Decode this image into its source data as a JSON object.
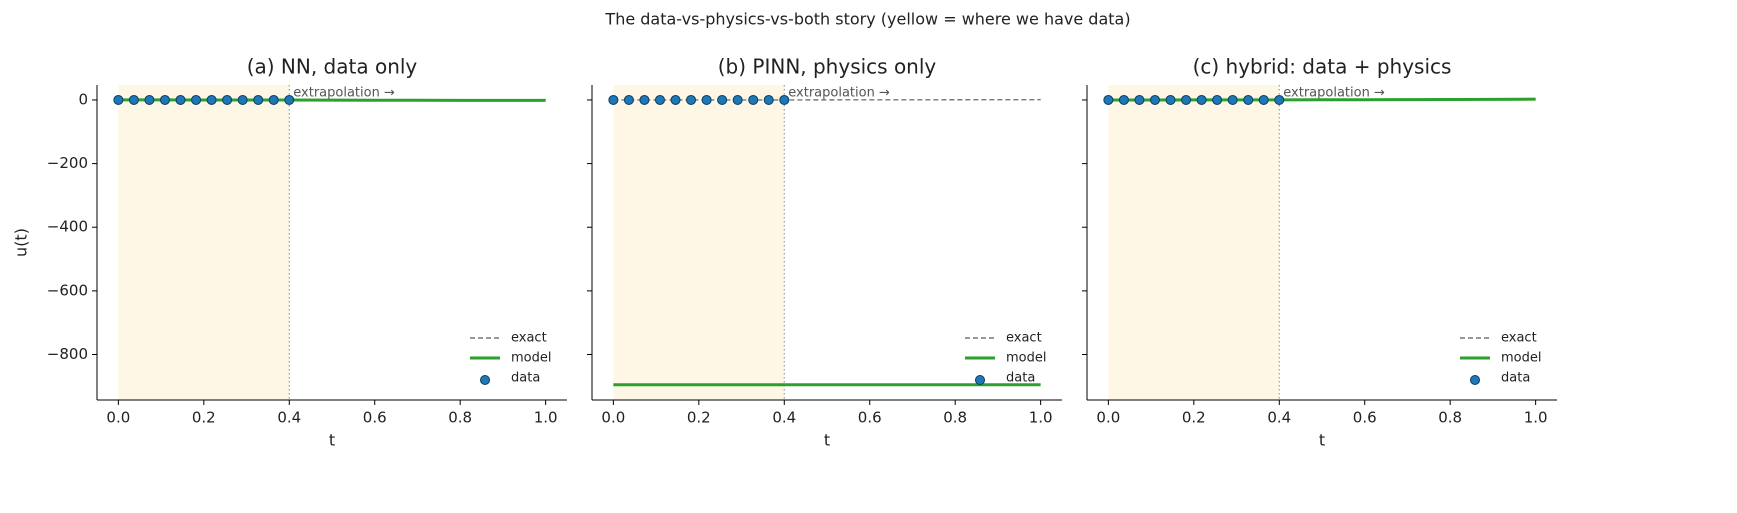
{
  "suptitle": "The data-vs-physics-vs-both story (yellow = where we have data)",
  "chart_data": [
    {
      "type": "line",
      "title": "(a) NN, data only",
      "xlabel": "t",
      "ylabel": "u(t)",
      "x": [
        0,
        0.1,
        0.2,
        0.3,
        0.4,
        0.5,
        0.6,
        0.7,
        0.8,
        0.9,
        1.0
      ],
      "series": [
        {
          "name": "exact",
          "style": "dashed",
          "color": "#777777",
          "values": [
            0,
            0.01,
            0.04,
            0.09,
            0.16,
            0.25,
            0.36,
            0.49,
            0.64,
            0.81,
            1
          ]
        },
        {
          "name": "model",
          "style": "solid",
          "color": "#2ca02c",
          "values": [
            0.2,
            0.1,
            0,
            0,
            -0.2,
            -0.5,
            -0.8,
            -1,
            -1.2,
            -1.4,
            -1.5
          ]
        },
        {
          "name": "data",
          "style": "markers",
          "color": "#1f77b4",
          "x": [
            0,
            0.0364,
            0.0727,
            0.1091,
            0.1455,
            0.1818,
            0.2182,
            0.2545,
            0.2909,
            0.3273,
            0.3636,
            0.4
          ],
          "values": [
            0,
            0,
            0,
            0,
            0,
            0,
            0,
            0,
            0,
            0,
            0,
            0
          ]
        }
      ],
      "shade": [
        0,
        0.4
      ],
      "vline": 0.4,
      "annotation": "extrapolation →",
      "legend": "lower right",
      "xlim": [
        -0.05,
        1.05
      ],
      "ylim": [
        -943,
        47
      ],
      "xticks": [
        {
          "value": 0,
          "label": "0.0"
        },
        0.2,
        0.4,
        0.6,
        0.8,
        {
          "value": 1,
          "label": "1.0"
        }
      ],
      "yticks": [
        0,
        {
          "value": -200,
          "label": "−200"
        },
        {
          "value": -400,
          "label": "−400"
        },
        {
          "value": -600,
          "label": "−600"
        },
        {
          "value": -800,
          "label": "−800"
        }
      ]
    },
    {
      "type": "line",
      "title": "(b) PINN, physics only",
      "xlabel": "t",
      "x": [
        0,
        0.1,
        0.2,
        0.3,
        0.4,
        0.5,
        0.6,
        0.7,
        0.8,
        0.9,
        1.0
      ],
      "series": [
        {
          "name": "exact",
          "style": "dashed",
          "color": "#777777",
          "values": [
            0,
            0.01,
            0.04,
            0.09,
            0.16,
            0.25,
            0.36,
            0.49,
            0.64,
            0.81,
            1
          ]
        },
        {
          "name": "model",
          "style": "solid",
          "color": "#2ca02c",
          "values": [
            -895,
            -895,
            -895,
            -895,
            -895,
            -895,
            -895,
            -895,
            -895,
            -895,
            -895
          ]
        },
        {
          "name": "data",
          "style": "markers",
          "color": "#1f77b4",
          "x": [
            0,
            0.0364,
            0.0727,
            0.1091,
            0.1455,
            0.1818,
            0.2182,
            0.2545,
            0.2909,
            0.3273,
            0.3636,
            0.4
          ],
          "values": [
            0,
            0,
            0,
            0,
            0,
            0,
            0,
            0,
            0,
            0,
            0,
            0
          ]
        }
      ],
      "shade": [
        0,
        0.4
      ],
      "vline": 0.4,
      "annotation": "extrapolation →",
      "legend": "lower right",
      "xlim": [
        -0.05,
        1.05
      ],
      "ylim": [
        -943,
        47
      ],
      "xticks": [
        {
          "value": 0,
          "label": "0.0"
        },
        0.2,
        0.4,
        0.6,
        0.8,
        {
          "value": 1,
          "label": "1.0"
        }
      ]
    },
    {
      "type": "line",
      "title": "(c) hybrid: data + physics",
      "xlabel": "t",
      "x": [
        0,
        0.1,
        0.2,
        0.3,
        0.4,
        0.5,
        0.6,
        0.7,
        0.8,
        0.9,
        1.0
      ],
      "series": [
        {
          "name": "exact",
          "style": "dashed",
          "color": "#777777",
          "values": [
            0,
            0.01,
            0.04,
            0.09,
            0.16,
            0.25,
            0.36,
            0.49,
            0.64,
            0.81,
            1
          ]
        },
        {
          "name": "model",
          "style": "solid",
          "color": "#2ca02c",
          "values": [
            0,
            0,
            0.1,
            0.2,
            0.3,
            0.5,
            0.8,
            1.1,
            1.5,
            2,
            2.5
          ]
        },
        {
          "name": "data",
          "style": "markers",
          "color": "#1f77b4",
          "x": [
            0,
            0.0364,
            0.0727,
            0.1091,
            0.1455,
            0.1818,
            0.2182,
            0.2545,
            0.2909,
            0.3273,
            0.3636,
            0.4
          ],
          "values": [
            0,
            0,
            0,
            0,
            0,
            0,
            0,
            0,
            0,
            0,
            0,
            0
          ]
        }
      ],
      "shade": [
        0,
        0.4
      ],
      "vline": 0.4,
      "annotation": "extrapolation →",
      "legend": "lower right",
      "xlim": [
        -0.05,
        1.05
      ],
      "ylim": [
        -943,
        47
      ],
      "xticks": [
        {
          "value": 0,
          "label": "0.0"
        },
        0.2,
        0.4,
        0.6,
        0.8,
        {
          "value": 1,
          "label": "1.0"
        }
      ]
    }
  ]
}
